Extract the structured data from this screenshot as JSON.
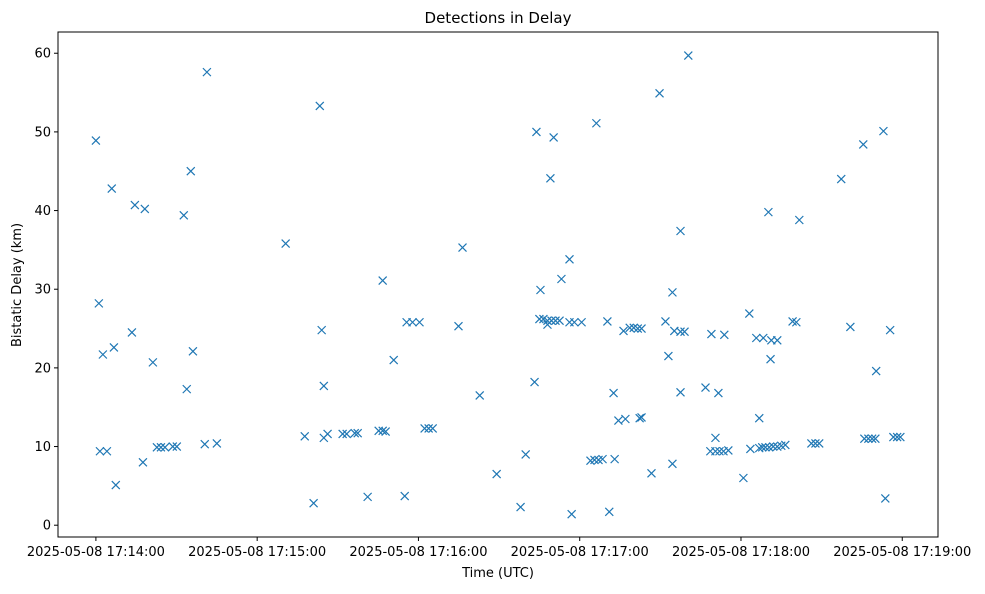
{
  "chart_data": {
    "type": "scatter",
    "title": "Detections in Delay",
    "xlabel": "Time (UTC)",
    "ylabel": "Bistatic Delay (km)",
    "x_units": "seconds after 2025-05-08 17:14:00",
    "xlim": [
      -14.1,
      313.3
    ],
    "ylim": [
      -1.5,
      62.7
    ],
    "x_ticks": [
      {
        "value": 0,
        "label": "2025-05-08 17:14:00"
      },
      {
        "value": 60,
        "label": "2025-05-08 17:15:00"
      },
      {
        "value": 120,
        "label": "2025-05-08 17:16:00"
      },
      {
        "value": 180,
        "label": "2025-05-08 17:17:00"
      },
      {
        "value": 240,
        "label": "2025-05-08 17:18:00"
      },
      {
        "value": 300,
        "label": "2025-05-08 17:19:00"
      }
    ],
    "y_ticks": [
      0,
      10,
      20,
      30,
      40,
      50,
      60
    ],
    "marker": "x",
    "color": "#1f77b4",
    "grid": false,
    "points": [
      [
        0,
        48.9
      ],
      [
        1.1,
        28.2
      ],
      [
        2.6,
        21.7
      ],
      [
        1.5,
        9.4
      ],
      [
        4.1,
        9.4
      ],
      [
        5.9,
        42.8
      ],
      [
        6.7,
        22.6
      ],
      [
        7.4,
        5.1
      ],
      [
        13.4,
        24.5
      ],
      [
        14.5,
        40.7
      ],
      [
        17.5,
        8.0
      ],
      [
        18.2,
        40.2
      ],
      [
        21.2,
        20.7
      ],
      [
        22.7,
        9.9
      ],
      [
        24.2,
        9.9
      ],
      [
        25.7,
        9.9
      ],
      [
        28.6,
        10.0
      ],
      [
        30.1,
        10.0
      ],
      [
        32.7,
        39.4
      ],
      [
        33.8,
        17.3
      ],
      [
        35.3,
        45.0
      ],
      [
        36.1,
        22.1
      ],
      [
        40.5,
        10.3
      ],
      [
        41.3,
        57.6
      ],
      [
        45.0,
        10.4
      ],
      [
        70.6,
        35.8
      ],
      [
        77.7,
        11.3
      ],
      [
        81.0,
        2.8
      ],
      [
        83.3,
        53.3
      ],
      [
        84.0,
        24.8
      ],
      [
        84.8,
        17.7
      ],
      [
        84.8,
        11.1
      ],
      [
        86.2,
        11.6
      ],
      [
        91.8,
        11.6
      ],
      [
        93.3,
        11.6
      ],
      [
        96.3,
        11.7
      ],
      [
        97.4,
        11.7
      ],
      [
        101.1,
        3.6
      ],
      [
        105.2,
        12.0
      ],
      [
        106.7,
        12.0
      ],
      [
        107.8,
        11.9
      ],
      [
        106.7,
        31.1
      ],
      [
        110.8,
        21.0
      ],
      [
        114.9,
        3.7
      ],
      [
        115.6,
        25.8
      ],
      [
        117.8,
        25.8
      ],
      [
        120.4,
        25.8
      ],
      [
        122.3,
        12.3
      ],
      [
        123.8,
        12.3
      ],
      [
        125.3,
        12.3
      ],
      [
        134.9,
        25.3
      ],
      [
        136.4,
        35.3
      ],
      [
        142.8,
        16.5
      ],
      [
        149.1,
        6.5
      ],
      [
        158.0,
        2.3
      ],
      [
        159.9,
        9.0
      ],
      [
        163.2,
        18.2
      ],
      [
        163.9,
        50.0
      ],
      [
        165.4,
        29.9
      ],
      [
        165.0,
        26.2
      ],
      [
        166.5,
        26.2
      ],
      [
        168.0,
        26.0
      ],
      [
        169.5,
        26.0
      ],
      [
        171.0,
        26.0
      ],
      [
        172.5,
        26.0
      ],
      [
        168.0,
        25.5
      ],
      [
        169.1,
        44.1
      ],
      [
        170.3,
        49.3
      ],
      [
        173.2,
        31.3
      ],
      [
        176.2,
        33.8
      ],
      [
        176.2,
        25.8
      ],
      [
        178.0,
        25.8
      ],
      [
        177.0,
        1.4
      ],
      [
        180.7,
        25.8
      ],
      [
        184.0,
        8.2
      ],
      [
        185.5,
        8.3
      ],
      [
        187.0,
        8.3
      ],
      [
        188.5,
        8.4
      ],
      [
        186.2,
        51.1
      ],
      [
        190.3,
        25.9
      ],
      [
        191.0,
        1.7
      ],
      [
        192.6,
        16.8
      ],
      [
        193.0,
        8.4
      ],
      [
        194.4,
        13.3
      ],
      [
        196.3,
        24.7
      ],
      [
        197.0,
        13.5
      ],
      [
        198.6,
        25.1
      ],
      [
        200.1,
        25.1
      ],
      [
        201.6,
        25.0
      ],
      [
        203.0,
        25.0
      ],
      [
        202.3,
        13.6
      ],
      [
        203.0,
        13.7
      ],
      [
        206.7,
        6.6
      ],
      [
        209.7,
        54.9
      ],
      [
        211.9,
        25.9
      ],
      [
        213.0,
        21.5
      ],
      [
        214.5,
        29.6
      ],
      [
        214.5,
        7.8
      ],
      [
        215.2,
        24.7
      ],
      [
        217.5,
        24.6
      ],
      [
        219.0,
        24.6
      ],
      [
        217.5,
        37.4
      ],
      [
        217.5,
        16.9
      ],
      [
        220.4,
        59.7
      ],
      [
        226.8,
        17.5
      ],
      [
        228.6,
        9.4
      ],
      [
        229.0,
        24.3
      ],
      [
        230.5,
        11.1
      ],
      [
        230.5,
        9.4
      ],
      [
        232.0,
        9.4
      ],
      [
        233.5,
        9.4
      ],
      [
        235.3,
        9.5
      ],
      [
        231.6,
        16.8
      ],
      [
        233.8,
        24.2
      ],
      [
        240.9,
        6.0
      ],
      [
        243.1,
        26.9
      ],
      [
        243.5,
        9.7
      ],
      [
        245.7,
        23.8
      ],
      [
        246.8,
        13.6
      ],
      [
        246.8,
        9.8
      ],
      [
        247.9,
        9.9
      ],
      [
        249.1,
        9.9
      ],
      [
        250.5,
        9.9
      ],
      [
        252.0,
        10.0
      ],
      [
        253.5,
        10.0
      ],
      [
        255.0,
        10.1
      ],
      [
        256.5,
        10.2
      ],
      [
        248.3,
        23.8
      ],
      [
        250.2,
        39.8
      ],
      [
        251.0,
        21.1
      ],
      [
        251.3,
        23.5
      ],
      [
        253.5,
        23.5
      ],
      [
        259.2,
        25.9
      ],
      [
        260.6,
        25.8
      ],
      [
        261.7,
        38.8
      ],
      [
        266.2,
        10.4
      ],
      [
        267.7,
        10.4
      ],
      [
        269.1,
        10.4
      ],
      [
        277.3,
        44.0
      ],
      [
        280.7,
        25.2
      ],
      [
        285.5,
        48.4
      ],
      [
        285.9,
        11.0
      ],
      [
        287.4,
        11.0
      ],
      [
        288.8,
        11.0
      ],
      [
        290.0,
        11.0
      ],
      [
        290.3,
        19.6
      ],
      [
        293.0,
        50.1
      ],
      [
        293.7,
        3.4
      ],
      [
        295.5,
        24.8
      ],
      [
        296.7,
        11.2
      ],
      [
        298.1,
        11.2
      ],
      [
        299.3,
        11.2
      ]
    ]
  }
}
